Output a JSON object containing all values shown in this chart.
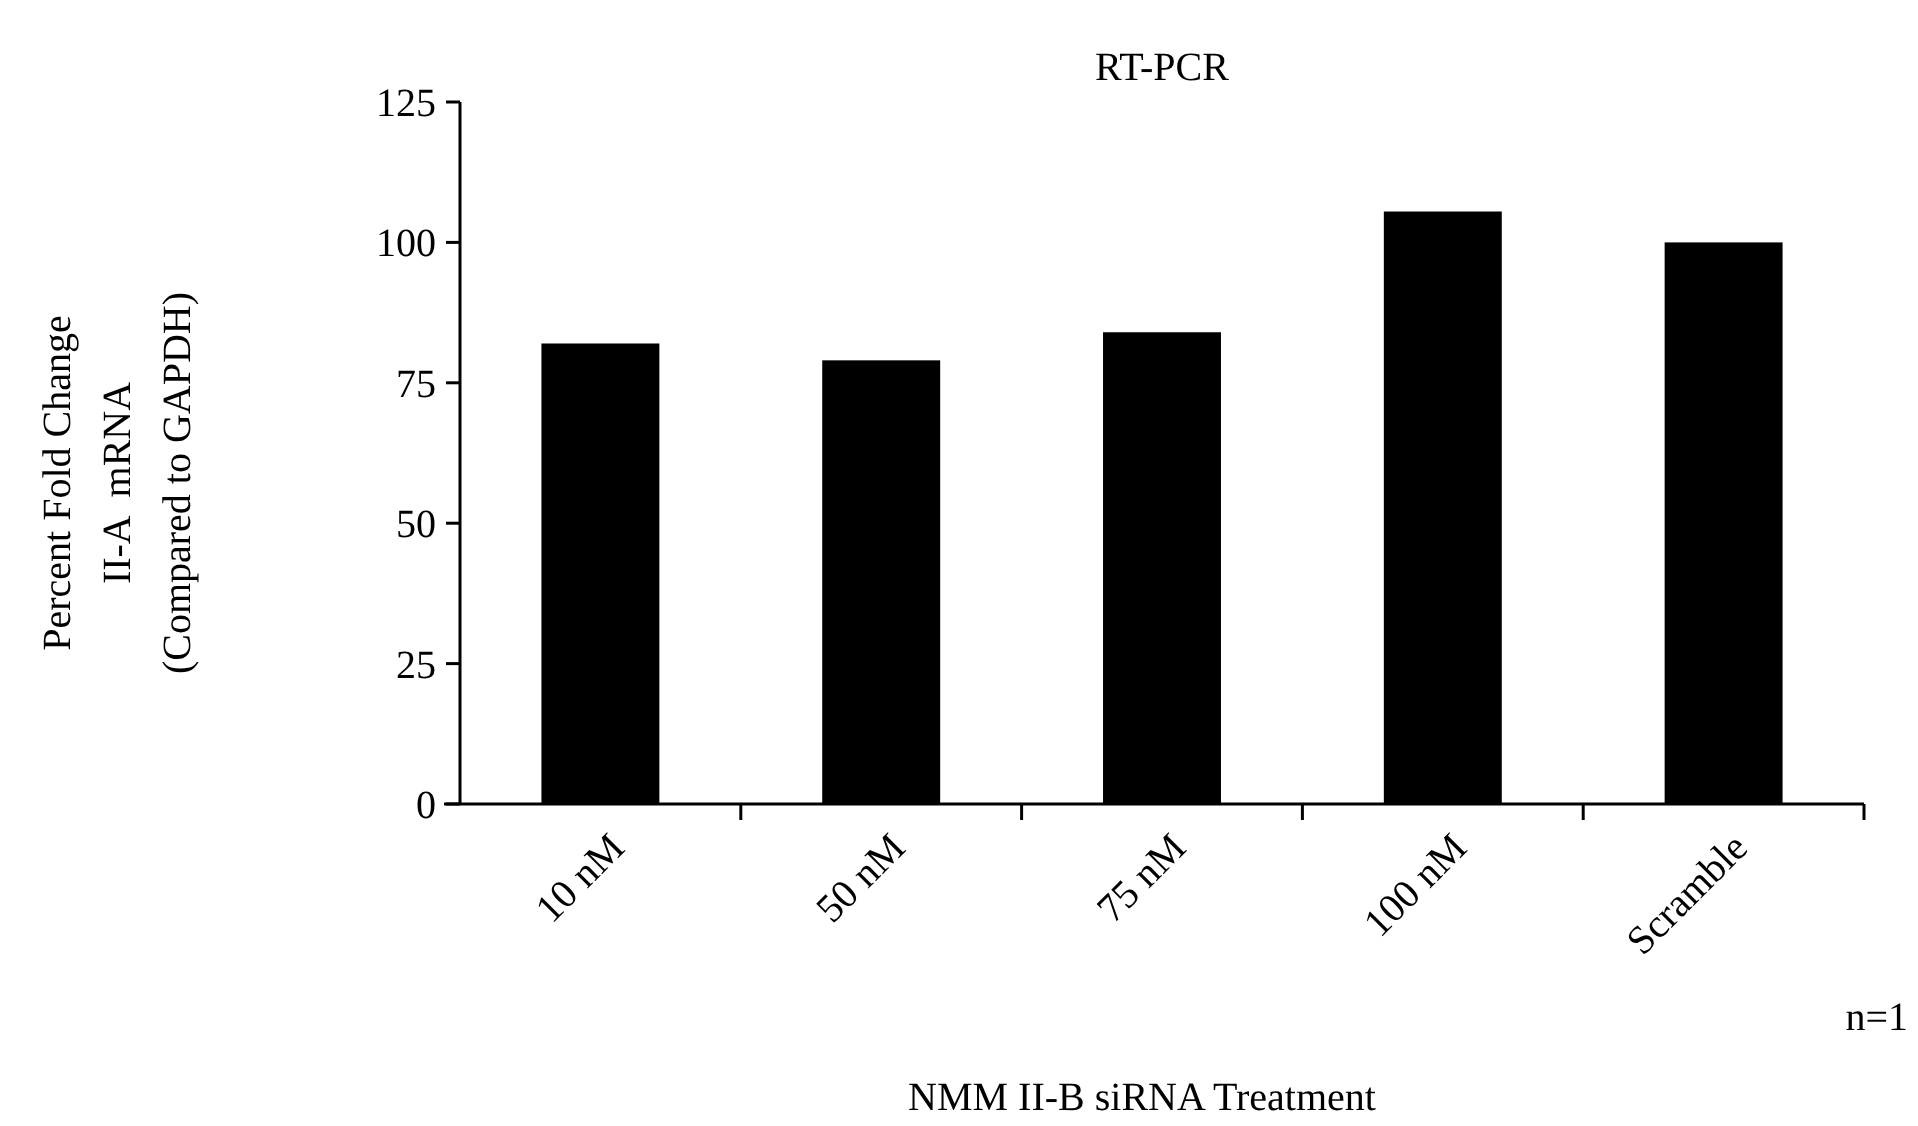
{
  "chart_data": {
    "type": "bar",
    "title": "RT-PCR",
    "xlabel": "NMM II-B siRNA Treatment",
    "ylabel": "Percent Fold Change\nII-A  mRNA\n(Compared to GAPDH)",
    "categories": [
      "10 nM",
      "50 nM",
      "75 nM",
      "100 nM",
      "Scramble"
    ],
    "values": [
      82,
      79,
      84,
      105.5,
      100
    ],
    "color": "#000000",
    "ylim": [
      0,
      125
    ],
    "yticks": [
      0,
      25,
      50,
      75,
      100,
      125
    ],
    "grid": false,
    "annotations": [
      "n=1"
    ]
  }
}
